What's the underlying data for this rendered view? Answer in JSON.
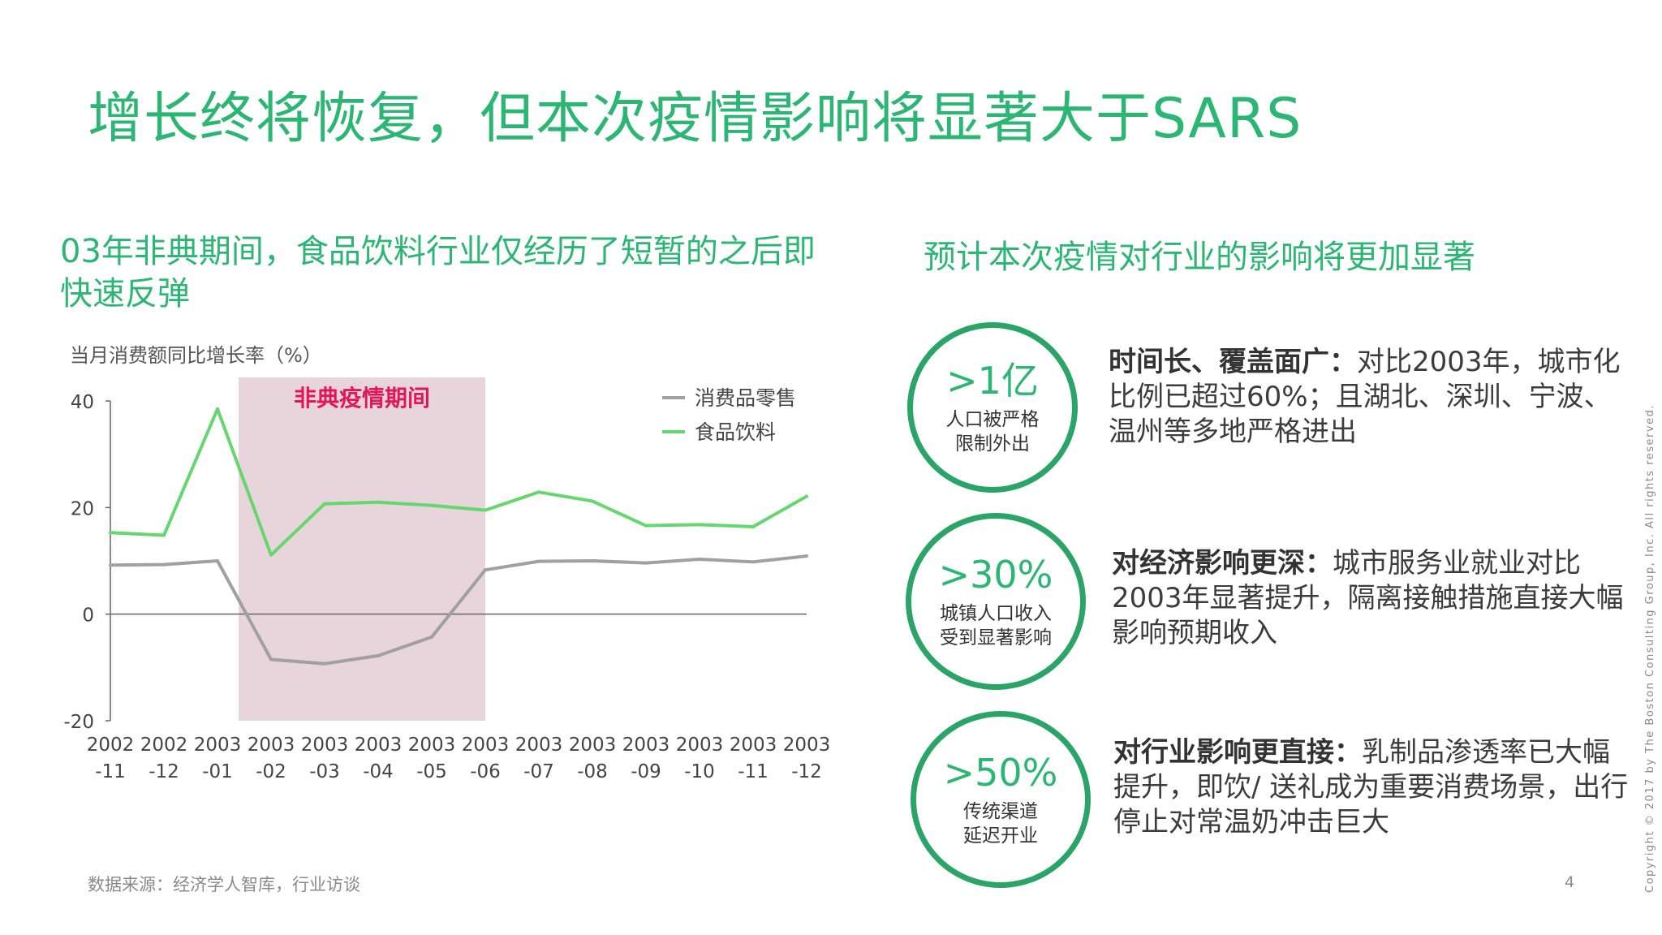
{
  "title": "增长终将恢复，但本次疫情影响将显著大于SARS",
  "left_heading": "03年非典期间，食品饮料行业仅经历了短暂的之后即快速反弹",
  "right_heading": "预计本次疫情对行业的影响将更加显著",
  "chart_data": {
    "type": "line",
    "ylabel": "当月消费额同比增长率（%）",
    "ylim": [
      -20,
      40
    ],
    "yticks": [
      "40",
      "20",
      "0",
      "-20"
    ],
    "ytick_values": [
      40,
      20,
      0,
      -20
    ],
    "categories": [
      "2002-11",
      "2002-12",
      "2003-01",
      "2003-02",
      "2003-03",
      "2003-04",
      "2003-05",
      "2003-06",
      "2003-07",
      "2003-08",
      "2003-09",
      "2003-10",
      "2003-11",
      "2003-12"
    ],
    "x_labels_top": [
      "2002",
      "2002",
      "2003",
      "2003",
      "2003",
      "2003",
      "2003",
      "2003",
      "2003",
      "2003",
      "2003",
      "2003",
      "2003",
      "2003"
    ],
    "x_labels_bottom": [
      "-11",
      "-12",
      "-01",
      "-02",
      "-03",
      "-04",
      "-05",
      "-06",
      "-07",
      "-08",
      "-09",
      "-10",
      "-11",
      "-12"
    ],
    "highlight": {
      "label": "非典疫情期间",
      "from": "2003-01",
      "to": "2003-06",
      "color": "#e8d5dc",
      "label_color": "#e0185a"
    },
    "series": [
      {
        "name": "消费品零售",
        "color": "#a0a0a0",
        "values": [
          9.2,
          9.3,
          10.0,
          -8.5,
          -9.3,
          -7.8,
          -4.3,
          8.3,
          9.9,
          10.0,
          9.6,
          10.3,
          9.8,
          10.9
        ]
      },
      {
        "name": "食品饮料",
        "color": "#66d66e",
        "values": [
          15.3,
          14.8,
          38.5,
          11.1,
          20.7,
          21.0,
          20.4,
          19.5,
          22.9,
          21.2,
          16.6,
          16.8,
          16.4,
          22.1
        ]
      }
    ]
  },
  "circles": [
    {
      "big": ">1亿",
      "small": "人口被严格\n限制外出"
    },
    {
      "big": ">30%",
      "small": "城镇人口收入\n受到显著影响"
    },
    {
      "big": ">50%",
      "small": "传统渠道\n延迟开业"
    }
  ],
  "items": [
    {
      "strong": "时间长、覆盖面广：",
      "text": "对比2003年，城市化比例已超过60%；且湖北、深圳、宁波、温州等多地严格进出"
    },
    {
      "strong": "对经济影响更深：",
      "text": "城市服务业就业对比2003年显著提升，隔离接触措施直接大幅影响预期收入"
    },
    {
      "strong": "对行业影响更直接：",
      "text": "乳制品渗透率已大幅提升，即饮/ 送礼成为重要消费场景，出行停止对常温奶冲击巨大"
    }
  ],
  "source": "数据来源：经济学人智库，行业访谈",
  "page_number": "4",
  "copyright": "Copyright © 2017 by The Boston Consulting Group, Inc. All rights reserved."
}
